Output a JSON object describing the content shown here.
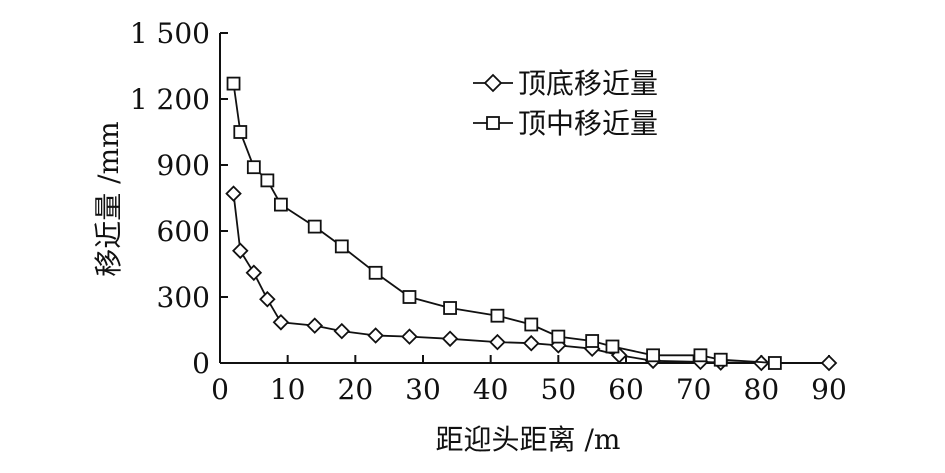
{
  "chart_data": {
    "type": "line",
    "title": "",
    "xlabel": "距迎头距离 /m",
    "ylabel": "移近量 /mm",
    "xlim": [
      0,
      90
    ],
    "ylim": [
      0,
      1500
    ],
    "x_ticks": [
      0,
      10,
      20,
      30,
      40,
      50,
      60,
      70,
      80,
      90
    ],
    "y_ticks": [
      0,
      300,
      600,
      900,
      1200,
      1500
    ],
    "x_tick_labels": [
      "0",
      "10",
      "20",
      "30",
      "40",
      "50",
      "60",
      "70",
      "80",
      "90"
    ],
    "y_tick_labels": [
      "0",
      "300",
      "600",
      "900",
      "1 200",
      "1 500"
    ],
    "legend_position": "top-center",
    "grid": false,
    "series": [
      {
        "name": "顶底移近量",
        "marker": "diamond",
        "x": [
          2,
          3,
          5,
          7,
          9,
          14,
          18,
          23,
          28,
          34,
          41,
          46,
          50,
          55,
          59,
          64,
          71,
          74,
          80,
          90
        ],
        "y": [
          770,
          510,
          410,
          290,
          185,
          170,
          145,
          125,
          120,
          110,
          95,
          90,
          80,
          65,
          35,
          10,
          5,
          2,
          0,
          0
        ]
      },
      {
        "name": "顶中移近量",
        "marker": "square",
        "x": [
          2,
          3,
          5,
          7,
          9,
          14,
          18,
          23,
          28,
          34,
          41,
          46,
          50,
          55,
          58,
          64,
          71,
          74,
          82
        ],
        "y": [
          1270,
          1050,
          890,
          830,
          720,
          620,
          530,
          410,
          300,
          250,
          215,
          175,
          120,
          100,
          75,
          35,
          35,
          15,
          0
        ]
      }
    ]
  }
}
